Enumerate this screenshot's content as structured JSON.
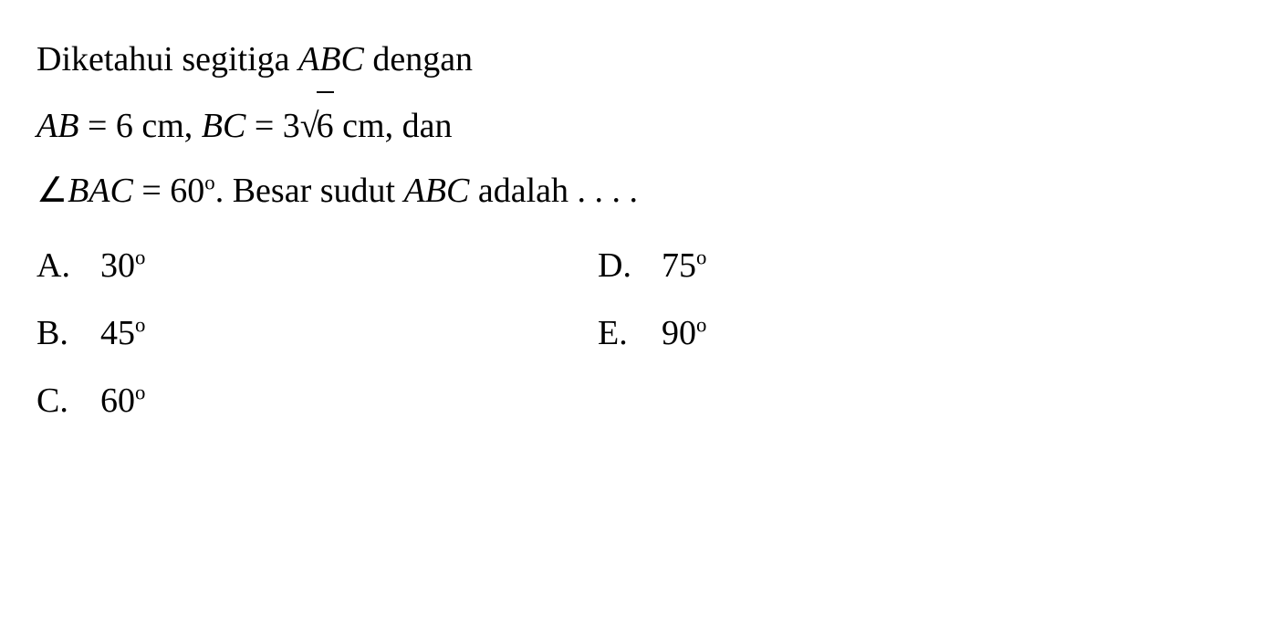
{
  "question": {
    "line1_part1": "Diketahui segitiga ",
    "line1_triangle": "ABC",
    "line1_part2": " dengan",
    "line2_ab": "AB",
    "line2_eq1": " = 6 cm, ",
    "line2_bc": "BC",
    "line2_eq2": " = 3",
    "line2_sqrt_arg": "6",
    "line2_part3": " cm, dan",
    "line3_angle_label": "BAC",
    "line3_eq": " = 60",
    "line3_degree": "o",
    "line3_part2": ". Besar sudut ",
    "line3_abc": "ABC",
    "line3_part3": " adalah . . . ."
  },
  "options": {
    "a": {
      "letter": "A.",
      "value": "30",
      "degree": "o"
    },
    "b": {
      "letter": "B.",
      "value": "45",
      "degree": "o"
    },
    "c": {
      "letter": "C.",
      "value": "60",
      "degree": "o"
    },
    "d": {
      "letter": "D.",
      "value": "75",
      "degree": "o"
    },
    "e": {
      "letter": "E.",
      "value": "90",
      "degree": "o"
    }
  },
  "styling": {
    "font_family": "Times New Roman, Palatino Linotype, serif",
    "font_size_pt": 28,
    "text_color": "#000000",
    "background_color": "#ffffff",
    "line_height": 1.85
  }
}
